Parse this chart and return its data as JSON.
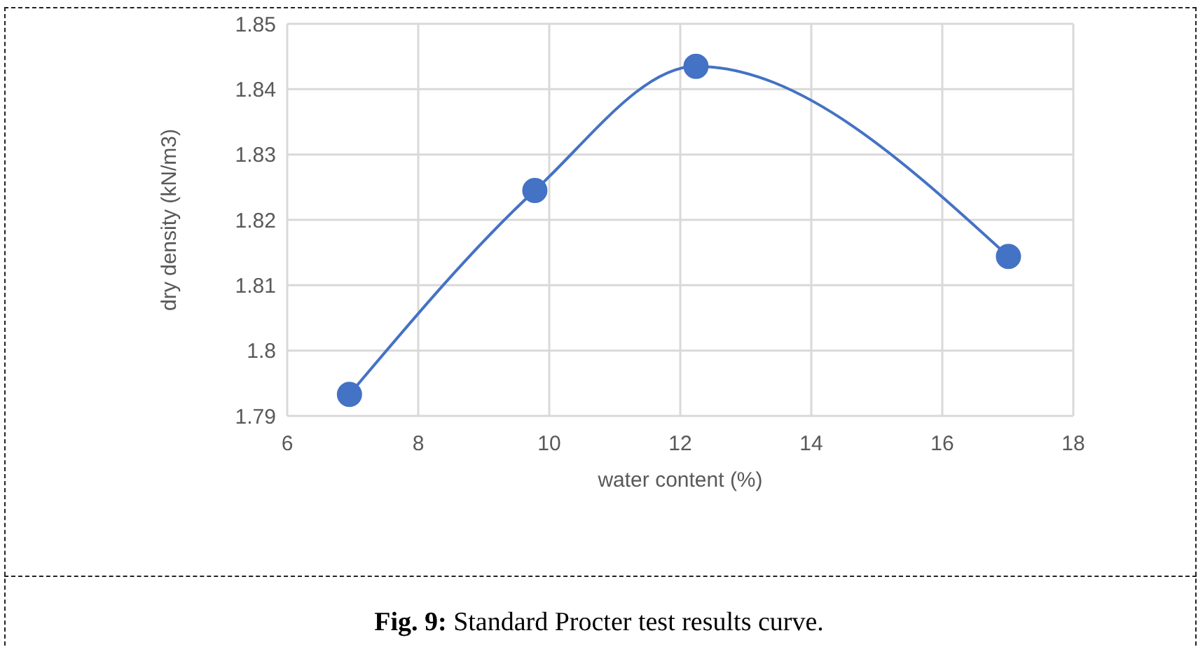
{
  "chart_data": {
    "type": "line",
    "title": "Fig. 9: Standard Procter test results curve.",
    "xlabel": "water content (%)",
    "ylabel": "dry density (kN/m3)",
    "x": [
      6.95,
      9.78,
      12.24,
      17.01
    ],
    "series": [
      {
        "color": "#4472c4",
        "values": [
          1.7933,
          1.8245,
          1.8435,
          1.8144
        ]
      }
    ],
    "xlim": [
      6,
      18
    ],
    "xticks": [
      6,
      8,
      10,
      12,
      14,
      16,
      18
    ],
    "ylim": [
      1.79,
      1.85
    ],
    "yticks": [
      1.79,
      1.8,
      1.81,
      1.82,
      1.83,
      1.84,
      1.85
    ],
    "grid": true,
    "marker": "circle",
    "line_style": "solid",
    "legend": false
  }
}
